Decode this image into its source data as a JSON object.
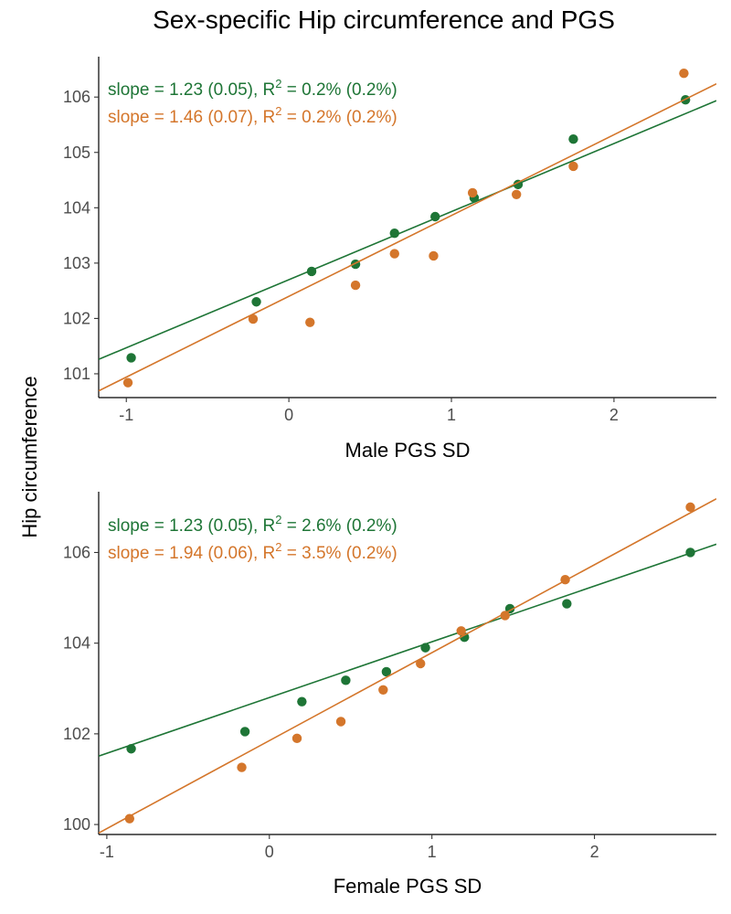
{
  "title": "Sex-specific Hip circumference and PGS",
  "ylabel": "Hip circumference",
  "colors": {
    "green": "#1e7536",
    "orange": "#d4762b"
  },
  "chart_data": [
    {
      "type": "scatter",
      "xlabel": "Male PGS SD",
      "xlim": [
        -1.17,
        2.63
      ],
      "ylim": [
        100.57,
        106.73
      ],
      "xticks": [
        -1,
        0,
        1,
        2
      ],
      "yticks": [
        101,
        102,
        103,
        104,
        105,
        106
      ],
      "grid": false,
      "series": [
        {
          "color": "green",
          "x": [
            -0.97,
            -0.2,
            0.14,
            0.41,
            0.65,
            0.9,
            1.14,
            1.41,
            1.75,
            2.44
          ],
          "y": [
            101.29,
            102.3,
            102.85,
            102.98,
            103.54,
            103.84,
            104.18,
            104.42,
            105.24,
            105.95
          ],
          "fit": {
            "slope": 1.23,
            "intercept": 102.7
          },
          "annotation": {
            "prefix": "slope = 1.23 (0.05),  R",
            "sup": "2",
            "suffix": " = 0.2% (0.2%)"
          }
        },
        {
          "color": "orange",
          "x": [
            -0.99,
            -0.22,
            0.13,
            0.41,
            0.65,
            0.89,
            1.13,
            1.4,
            1.75,
            2.43
          ],
          "y": [
            100.84,
            101.99,
            101.93,
            102.6,
            103.17,
            103.13,
            104.27,
            104.24,
            104.75,
            106.43
          ],
          "fit": {
            "slope": 1.46,
            "intercept": 102.4
          },
          "annotation": {
            "prefix": "slope = 1.46 (0.07),  R",
            "sup": "2",
            "suffix": " = 0.2% (0.2%)"
          }
        }
      ]
    },
    {
      "type": "scatter",
      "xlabel": "Female PGS SD",
      "xlim": [
        -1.05,
        2.75
      ],
      "ylim": [
        99.78,
        107.34
      ],
      "xticks": [
        -1,
        0,
        1,
        2
      ],
      "yticks": [
        100,
        102,
        104,
        106
      ],
      "grid": false,
      "series": [
        {
          "color": "green",
          "x": [
            -0.85,
            -0.15,
            0.2,
            0.47,
            0.72,
            0.96,
            1.2,
            1.48,
            1.83,
            2.59
          ],
          "y": [
            101.67,
            102.05,
            102.71,
            103.18,
            103.37,
            103.9,
            104.13,
            104.76,
            104.87,
            106.0
          ],
          "fit": {
            "slope": 1.23,
            "intercept": 102.8
          },
          "annotation": {
            "prefix": "slope = 1.23 (0.05),  R",
            "sup": "2",
            "suffix": " = 2.6% (0.2%)"
          }
        },
        {
          "color": "orange",
          "x": [
            -0.86,
            -0.17,
            0.17,
            0.44,
            0.7,
            0.93,
            1.18,
            1.45,
            1.82,
            2.59
          ],
          "y": [
            100.13,
            101.26,
            101.9,
            102.27,
            102.97,
            103.55,
            104.27,
            104.61,
            105.4,
            107.0
          ],
          "fit": {
            "slope": 1.94,
            "intercept": 101.85
          },
          "annotation": {
            "prefix": "slope = 1.94 (0.06),  R",
            "sup": "2",
            "suffix": " = 3.5% (0.2%)"
          }
        }
      ]
    }
  ]
}
